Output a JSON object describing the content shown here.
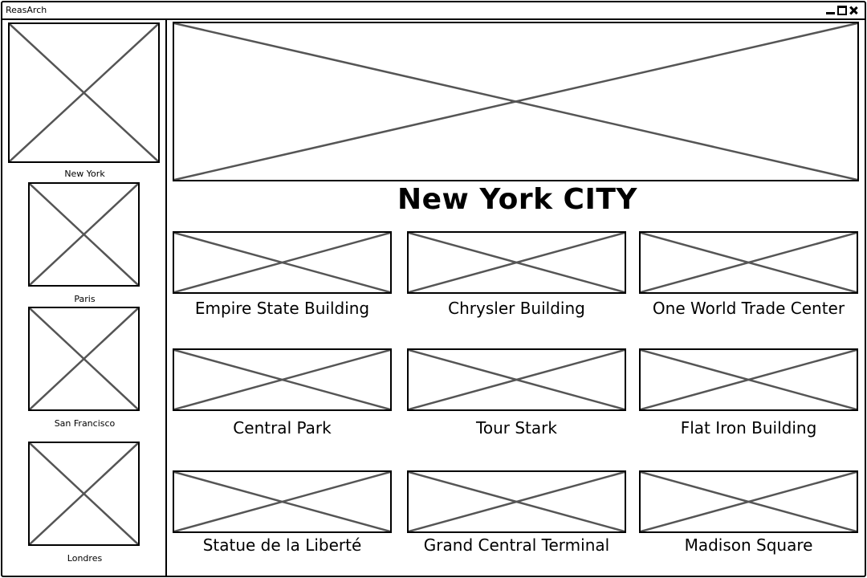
{
  "window": {
    "title": "ReasArch",
    "controls": [
      "minimize-icon",
      "maximize-icon",
      "close-icon"
    ]
  },
  "sidebar": {
    "cities": [
      {
        "label": "New York",
        "selected": true
      },
      {
        "label": "Paris"
      },
      {
        "label": "San Francisco"
      },
      {
        "label": "Londres"
      }
    ]
  },
  "main": {
    "title": "New York CITY",
    "landmarks": [
      {
        "label": "Empire State Building"
      },
      {
        "label": "Chrysler Building"
      },
      {
        "label": "One World Trade Center"
      },
      {
        "label": "Central Park"
      },
      {
        "label": "Tour Stark"
      },
      {
        "label": "Flat Iron Building"
      },
      {
        "label": "Statue de la Liberté"
      },
      {
        "label": "Grand Central Terminal"
      },
      {
        "label": "Madison Square"
      }
    ]
  },
  "colors": {
    "border": "#000000",
    "placeholder_cross": "#555555",
    "background": "#ffffff"
  }
}
